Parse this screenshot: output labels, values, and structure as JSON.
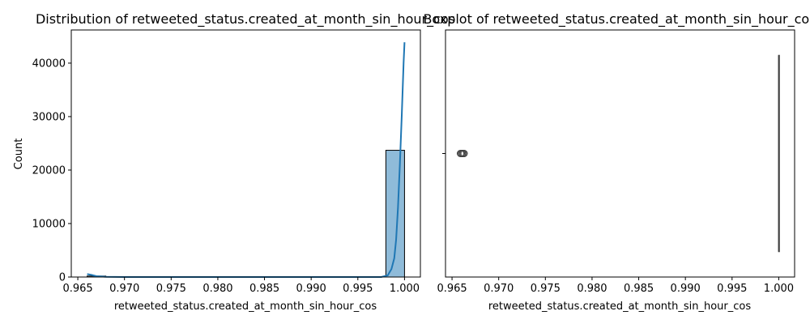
{
  "chart_data": [
    {
      "type": "bar",
      "subtype": "histogram-with-kde",
      "title": "Distribution of retweeted_status.created_at_month_sin_hour_cos",
      "xlabel": "retweeted_status.created_at_month_sin_hour_cos",
      "ylabel": "Count",
      "xlim": [
        0.9643,
        1.0017
      ],
      "ylim": [
        0,
        46200
      ],
      "xticks": [
        "0.965",
        "0.970",
        "0.975",
        "0.980",
        "0.985",
        "0.990",
        "0.995",
        "1.000"
      ],
      "yticks": [
        "0",
        "10000",
        "20000",
        "30000",
        "40000"
      ],
      "grid": false,
      "bar_color": "#1f77b4",
      "bars": [
        {
          "x0": 0.966,
          "x1": 0.968,
          "value": 180
        },
        {
          "x0": 0.998,
          "x1": 1.0,
          "value": 23700
        }
      ],
      "kde": {
        "color": "#1f77b4",
        "x": [
          0.966,
          0.9665,
          0.967,
          0.968,
          0.97,
          0.975,
          0.98,
          0.985,
          0.99,
          0.995,
          0.9975,
          0.9982,
          0.9986,
          0.9989,
          0.9991,
          0.9993,
          0.9995,
          0.9997,
          0.9999,
          1.0
        ],
        "y": [
          550,
          380,
          160,
          40,
          0,
          0,
          0,
          0,
          0,
          0,
          0,
          300,
          1500,
          3500,
          7000,
          13000,
          21000,
          30000,
          40000,
          43900
        ]
      }
    },
    {
      "type": "boxplot",
      "title": "Boxplot of retweeted_status.created_at_month_sin_hour_cos",
      "xlabel": "retweeted_status.created_at_month_sin_hour_cos",
      "ylabel": "",
      "xlim": [
        0.9643,
        1.0017
      ],
      "xticks": [
        "0.965",
        "0.970",
        "0.975",
        "0.980",
        "0.985",
        "0.990",
        "0.995",
        "1.000"
      ],
      "grid": false,
      "box": {
        "q1": 1.0,
        "median": 1.0,
        "q3": 1.0,
        "whisker_low": 1.0,
        "whisker_high": 1.0
      },
      "outliers": [
        0.9659,
        0.966,
        0.9661,
        0.9662,
        0.9663
      ]
    }
  ]
}
